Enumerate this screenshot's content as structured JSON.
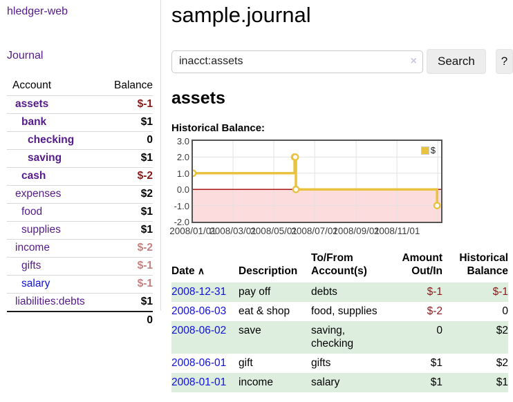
{
  "app": {
    "brand": "hledger-web",
    "nav": {
      "journal": "Journal"
    }
  },
  "sidebar": {
    "header": {
      "account": "Account",
      "balance": "Balance"
    },
    "accounts": [
      {
        "name": "assets",
        "balance": "$-1",
        "depth": 1,
        "bold": true
      },
      {
        "name": "bank",
        "balance": "$1",
        "depth": 2,
        "bold": true
      },
      {
        "name": "checking",
        "balance": "0",
        "depth": 3,
        "bold": true
      },
      {
        "name": "saving",
        "balance": "$1",
        "depth": 3,
        "bold": true
      },
      {
        "name": "cash",
        "balance": "$-2",
        "depth": 2,
        "bold": true
      },
      {
        "name": "expenses",
        "balance": "$2",
        "depth": 1,
        "bold": false
      },
      {
        "name": "food",
        "balance": "$1",
        "depth": 2,
        "bold": false
      },
      {
        "name": "supplies",
        "balance": "$1",
        "depth": 2,
        "bold": false
      },
      {
        "name": "income",
        "balance": "$-2",
        "depth": 1,
        "bold": false
      },
      {
        "name": "gifts",
        "balance": "$-1",
        "depth": 2,
        "bold": false
      },
      {
        "name": "salary",
        "balance": "$-1",
        "depth": 2,
        "bold": false,
        "blue_link": true
      },
      {
        "name": "liabilities:debts",
        "balance": "$1",
        "depth": 1,
        "bold": false
      }
    ],
    "total": "0"
  },
  "main": {
    "title": "sample.journal",
    "search": {
      "value": "inacct:assets",
      "clear_icon": "×",
      "search_button": "Search",
      "help_button": "?"
    },
    "account_heading": "assets",
    "chart_title": "Historical Balance:"
  },
  "chart_data": {
    "type": "line",
    "title": "Historical Balance:",
    "series": [
      {
        "name": "$",
        "steps": true,
        "points": [
          {
            "date": "2008-01-01",
            "value": 1
          },
          {
            "date": "2008-06-01",
            "value": 2
          },
          {
            "date": "2008-06-02",
            "value": 2
          },
          {
            "date": "2008-06-03",
            "value": 0
          },
          {
            "date": "2008-12-31",
            "value": -1
          }
        ]
      }
    ],
    "x_ticks": [
      "2008/01/01",
      "2008/03/01",
      "2008/05/01",
      "2008/07/01",
      "2008/09/01",
      "2008/11/01"
    ],
    "x_extra_gridlines": [
      "2009/01/01"
    ],
    "y_ticks": [
      "3.0",
      "2.0",
      "1.0",
      "0.0",
      "-1.0",
      "-2.0"
    ],
    "ylim": [
      -2,
      3
    ],
    "grid": true,
    "legend": {
      "label": "$",
      "position": "top-right"
    },
    "colors": {
      "line": "#e9c23f",
      "marker_fill": "#ffffff",
      "zero_line": "#a50000",
      "below_zero_fill": "#fcdcdc",
      "gridline": "#e2e2e2",
      "border": "#545454"
    }
  },
  "register": {
    "columns": [
      {
        "key": "date",
        "label": "Date",
        "sort_icon": "∧",
        "align": "left"
      },
      {
        "key": "description",
        "label": "Description",
        "align": "left"
      },
      {
        "key": "accounts",
        "label": "To/From Account(s)",
        "align": "left"
      },
      {
        "key": "amount",
        "label": "Amount Out/In",
        "align": "right"
      },
      {
        "key": "balance",
        "label": "Historical Balance",
        "align": "right"
      }
    ],
    "rows": [
      {
        "date": "2008-12-31",
        "description": "pay off",
        "accounts": "debts",
        "amount": "$-1",
        "balance": "$-1"
      },
      {
        "date": "2008-06-03",
        "description": "eat & shop",
        "accounts": "food, supplies",
        "amount": "$-2",
        "balance": "0"
      },
      {
        "date": "2008-06-02",
        "description": "save",
        "accounts": "saving, checking",
        "amount": "0",
        "balance": "$2"
      },
      {
        "date": "2008-06-01",
        "description": "gift",
        "accounts": "gifts",
        "amount": "$1",
        "balance": "$2"
      },
      {
        "date": "2008-01-01",
        "description": "income",
        "accounts": "salary",
        "amount": "$1",
        "balance": "$1"
      }
    ]
  },
  "colors": {
    "link_purple": "#551a8b",
    "link_blue": "#0f0fe0",
    "negative_strong": "#8b1a1a",
    "negative_muted": "#c48181",
    "row_green": "#deeede"
  }
}
